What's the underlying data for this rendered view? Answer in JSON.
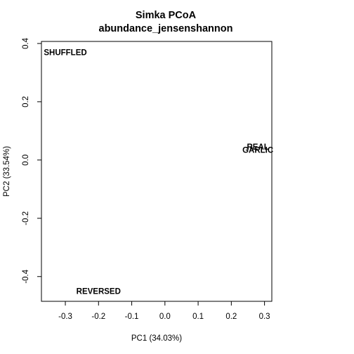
{
  "chart_data": {
    "type": "scatter",
    "title": "Simka PCoA",
    "subtitle": "abundance_jensenshannon",
    "xlabel": "PC1 (34.03%)",
    "ylabel": "PC2 (33.54%)",
    "xlim": [
      -0.372,
      0.322
    ],
    "ylim": [
      -0.485,
      0.407
    ],
    "x_ticks": [
      -0.3,
      -0.2,
      -0.1,
      0.0,
      0.1,
      0.2,
      0.3
    ],
    "x_tick_labels": [
      "-0.3",
      "-0.2",
      "-0.1",
      "0.0",
      "0.1",
      "0.2",
      "0.3"
    ],
    "y_ticks": [
      -0.4,
      -0.2,
      0.0,
      0.2,
      0.4
    ],
    "y_tick_labels": [
      "-0.4",
      "-0.2",
      "0.0",
      "0.2",
      "0.4"
    ],
    "grid": false,
    "points": [
      {
        "label": "SHUFFLED",
        "x": -0.3,
        "y": 0.37
      },
      {
        "label": "REAL",
        "x": 0.28,
        "y": 0.045
      },
      {
        "label": "GARLIC",
        "x": 0.28,
        "y": 0.035
      },
      {
        "label": "REVERSED",
        "x": -0.2,
        "y": -0.45
      }
    ]
  }
}
